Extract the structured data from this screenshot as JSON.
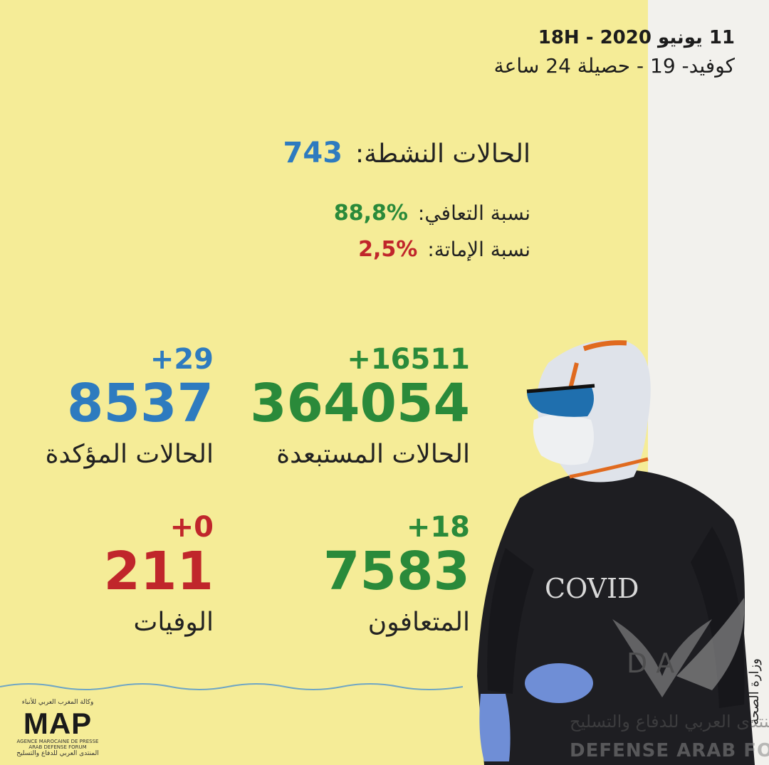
{
  "header": {
    "date_line": "11 يونيو 2020 - 18H",
    "subtitle": "كوفيد- 19 - حصيلة 24 ساعة"
  },
  "active_cases": {
    "label": "الحالات النشطة:",
    "value": "743"
  },
  "rates": {
    "recovery": {
      "label": "نسبة التعافي:",
      "value": "88,8%"
    },
    "mortality": {
      "label": "نسبة الإماتة:",
      "value": "2,5%"
    }
  },
  "stats": {
    "excluded": {
      "delta": "+16511",
      "value": "364054",
      "label": "الحالات المستبعدة"
    },
    "confirmed": {
      "delta": "+29",
      "value": "8537",
      "label": "الحالات المؤكدة"
    },
    "recovered": {
      "delta": "+18",
      "value": "7583",
      "label": "المتعافون"
    },
    "deaths": {
      "delta": "+0",
      "value": "211",
      "label": "الوفيات"
    }
  },
  "figure": {
    "suit_text": "COVID"
  },
  "logo": {
    "agency_ar": "وكالة المغرب العربي للأنباء",
    "name": "MAP",
    "agency_fr": "AGENCE MAROCAINE DE PRESSE",
    "forum_en": "ARAB DEFENSE FORUM",
    "forum_ar": "المنتدى العربي للدفاع والتسليح"
  },
  "ministry": "وزارة الصحة",
  "watermark": {
    "letters": "D A",
    "arabic": "المنتدى العربي للدفاع والتسليح",
    "english": "DEFENSE ARAB FORUM"
  },
  "colors": {
    "background": "#f5ec97",
    "strip": "#f2f1ed",
    "green": "#2a8a3a",
    "blue": "#2e7bbf",
    "red": "#c0262b"
  }
}
